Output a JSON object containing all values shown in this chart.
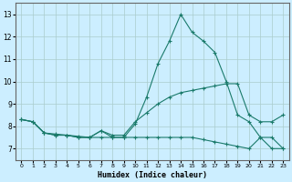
{
  "title": "",
  "xlabel": "Humidex (Indice chaleur)",
  "ylabel": "",
  "bg_color": "#cceeff",
  "grid_color": "#aacccc",
  "line_color": "#1a7a6a",
  "xlim": [
    -0.5,
    23.5
  ],
  "ylim": [
    6.5,
    13.5
  ],
  "xticks": [
    0,
    1,
    2,
    3,
    4,
    5,
    6,
    7,
    8,
    9,
    10,
    11,
    12,
    13,
    14,
    15,
    16,
    17,
    18,
    19,
    20,
    21,
    22,
    23
  ],
  "yticks": [
    7,
    8,
    9,
    10,
    11,
    12,
    13
  ],
  "line1_x": [
    0,
    1,
    2,
    3,
    4,
    5,
    6,
    7,
    8,
    9,
    10,
    11,
    12,
    13,
    14,
    15,
    16,
    17,
    18,
    19,
    20,
    21,
    22,
    23
  ],
  "line1_y": [
    8.3,
    8.2,
    7.7,
    7.6,
    7.6,
    7.5,
    7.5,
    7.8,
    7.5,
    7.5,
    8.1,
    9.3,
    10.8,
    11.8,
    13.0,
    12.2,
    11.8,
    11.3,
    10.0,
    8.5,
    8.2,
    7.5,
    7.0,
    7.0
  ],
  "line2_x": [
    0,
    1,
    2,
    3,
    4,
    5,
    6,
    7,
    8,
    9,
    10,
    11,
    12,
    13,
    14,
    15,
    16,
    17,
    18,
    19,
    20,
    21,
    22,
    23
  ],
  "line2_y": [
    8.3,
    8.2,
    7.7,
    7.65,
    7.6,
    7.55,
    7.5,
    7.8,
    7.6,
    7.6,
    8.2,
    8.6,
    9.0,
    9.3,
    9.5,
    9.6,
    9.7,
    9.8,
    9.9,
    9.9,
    8.5,
    8.2,
    8.2,
    8.5
  ],
  "line3_x": [
    0,
    1,
    2,
    3,
    4,
    5,
    6,
    7,
    8,
    9,
    10,
    11,
    12,
    13,
    14,
    15,
    16,
    17,
    18,
    19,
    20,
    21,
    22,
    23
  ],
  "line3_y": [
    8.3,
    8.2,
    7.7,
    7.6,
    7.6,
    7.5,
    7.5,
    7.5,
    7.5,
    7.5,
    7.5,
    7.5,
    7.5,
    7.5,
    7.5,
    7.5,
    7.4,
    7.3,
    7.2,
    7.1,
    7.0,
    7.5,
    7.5,
    7.0
  ]
}
